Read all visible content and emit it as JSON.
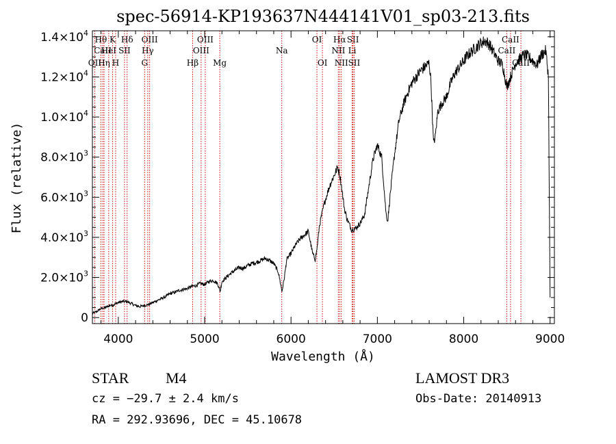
{
  "chart_data": {
    "type": "line",
    "title": "spec-56914-KP193637N444141V01_sp03-213.fits",
    "xlabel": "Wavelength (Å)",
    "ylabel": "Flux (relative)",
    "xlim": [
      3700,
      9050
    ],
    "ylim": [
      -300,
      14300
    ],
    "x_ticks": [
      4000,
      5000,
      6000,
      7000,
      8000,
      9000
    ],
    "x_tick_labels": [
      "4000",
      "5000",
      "6000",
      "7000",
      "8000",
      "9000"
    ],
    "y_ticks": [
      0,
      2000,
      4000,
      6000,
      8000,
      10000,
      12000,
      14000
    ],
    "y_tick_labels": [
      {
        "mantissa": "0",
        "exp": ""
      },
      {
        "mantissa": "2.0×10",
        "exp": "3"
      },
      {
        "mantissa": "4.0×10",
        "exp": "3"
      },
      {
        "mantissa": "6.0×10",
        "exp": "3"
      },
      {
        "mantissa": "8.0×10",
        "exp": "3"
      },
      {
        "mantissa": "1.0×10",
        "exp": "4"
      },
      {
        "mantissa": "1.2×10",
        "exp": "4"
      },
      {
        "mantissa": "1.4×10",
        "exp": "4"
      }
    ],
    "series": [
      {
        "name": "flux",
        "x": [
          3700,
          3750,
          3800,
          3850,
          3900,
          3950,
          4000,
          4050,
          4100,
          4150,
          4200,
          4250,
          4300,
          4350,
          4400,
          4450,
          4500,
          4550,
          4600,
          4650,
          4700,
          4750,
          4800,
          4850,
          4900,
          4950,
          5000,
          5050,
          5100,
          5150,
          5180,
          5200,
          5250,
          5300,
          5350,
          5400,
          5450,
          5500,
          5550,
          5600,
          5650,
          5700,
          5750,
          5800,
          5850,
          5870,
          5895,
          5920,
          5950,
          6000,
          6050,
          6100,
          6150,
          6200,
          6250,
          6280,
          6300,
          6330,
          6380,
          6420,
          6450,
          6500,
          6540,
          6560,
          6580,
          6600,
          6620,
          6650,
          6680,
          6700,
          6720,
          6750,
          6800,
          6850,
          6900,
          6950,
          7000,
          7050,
          7100,
          7120,
          7150,
          7200,
          7250,
          7300,
          7350,
          7400,
          7450,
          7500,
          7550,
          7600,
          7620,
          7650,
          7670,
          7700,
          7750,
          7800,
          7850,
          7900,
          7950,
          8000,
          8050,
          8100,
          8150,
          8200,
          8250,
          8300,
          8350,
          8400,
          8450,
          8500,
          8550,
          8600,
          8650,
          8700,
          8750,
          8800,
          8850,
          8900,
          8950,
          8980,
          9000
        ],
        "y": [
          200,
          300,
          450,
          500,
          600,
          650,
          750,
          800,
          800,
          700,
          600,
          550,
          600,
          650,
          750,
          850,
          950,
          1050,
          1200,
          1250,
          1350,
          1400,
          1450,
          1550,
          1600,
          1700,
          1650,
          1800,
          1850,
          1700,
          1300,
          1800,
          2000,
          2200,
          2350,
          2500,
          2450,
          2600,
          2700,
          2750,
          2850,
          2950,
          2850,
          2700,
          2300,
          1900,
          1300,
          1900,
          2900,
          3200,
          3600,
          3900,
          4100,
          4300,
          3200,
          2900,
          3400,
          4600,
          5600,
          6200,
          6600,
          7100,
          7500,
          7200,
          6700,
          6000,
          5400,
          4900,
          4600,
          4400,
          4400,
          4450,
          4700,
          5100,
          6500,
          7900,
          8600,
          8000,
          5200,
          4800,
          6200,
          8200,
          9800,
          10600,
          11200,
          11700,
          12000,
          12300,
          12500,
          12700,
          11800,
          8700,
          9000,
          10300,
          10700,
          11000,
          11700,
          12200,
          12500,
          12800,
          13100,
          13300,
          13500,
          13700,
          13800,
          13600,
          13200,
          12800,
          12600,
          11500,
          12100,
          12700,
          12900,
          13100,
          13000,
          12800,
          12600,
          13100,
          13300,
          12100,
          1000
        ]
      }
    ],
    "line_markers": [
      {
        "label": "Hθ",
        "x": 3798,
        "row": 1
      },
      {
        "label": "CaII",
        "x": 3820,
        "row": 2
      },
      {
        "label": "OII",
        "x": 3727,
        "row": 3
      },
      {
        "label": "Hη",
        "x": 3835,
        "row": 3
      },
      {
        "label": "HeI",
        "x": 3889,
        "row": 2
      },
      {
        "label": "K",
        "x": 3934,
        "row": 1
      },
      {
        "label": "H",
        "x": 3969,
        "row": 3
      },
      {
        "label": "SII",
        "x": 4072,
        "row": 2
      },
      {
        "label": "Hδ",
        "x": 4102,
        "row": 1
      },
      {
        "label": "OIII",
        "x": 4363,
        "row": 1
      },
      {
        "label": "Hγ",
        "x": 4341,
        "row": 2
      },
      {
        "label": "G",
        "x": 4305,
        "row": 3
      },
      {
        "label": "Hβ",
        "x": 4861,
        "row": 3
      },
      {
        "label": "OIII",
        "x": 5007,
        "row": 1
      },
      {
        "label": "OIII",
        "x": 4959,
        "row": 2
      },
      {
        "label": "Mg",
        "x": 5175,
        "row": 3
      },
      {
        "label": "Na",
        "x": 5893,
        "row": 2
      },
      {
        "label": "OI",
        "x": 6300,
        "row": 1
      },
      {
        "label": "OI",
        "x": 6364,
        "row": 3
      },
      {
        "label": "Hα",
        "x": 6563,
        "row": 1
      },
      {
        "label": "NII",
        "x": 6548,
        "row": 2
      },
      {
        "label": "NII",
        "x": 6583,
        "row": 3
      },
      {
        "label": "SII",
        "x": 6717,
        "row": 1
      },
      {
        "label": "Li",
        "x": 6708,
        "row": 2
      },
      {
        "label": "SII",
        "x": 6731,
        "row": 3
      },
      {
        "label": "CaII",
        "x": 8542,
        "row": 1
      },
      {
        "label": "CaII",
        "x": 8498,
        "row": 2
      },
      {
        "label": "CaII",
        "x": 8662,
        "row": 3
      }
    ],
    "grid": false,
    "legend": "none"
  },
  "info": {
    "class_label": "STAR",
    "subclass": "M4",
    "survey": "LAMOST DR3",
    "redshift": "cz = −29.7 ± 2.4 km/s",
    "obs_date": "Obs-Date: 20140913",
    "coords": "RA = 292.93696, DEC =  45.10678"
  },
  "colors": {
    "line": "#000000",
    "marker": "#cc0000",
    "background": "#ffffff"
  }
}
